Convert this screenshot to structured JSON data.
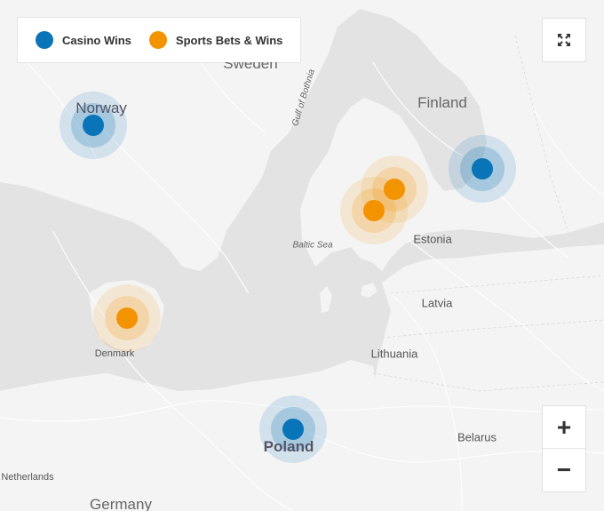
{
  "legend": {
    "items": [
      {
        "label": "Casino Wins",
        "color": "#0a74b8"
      },
      {
        "label": "Sports Bets & Wins",
        "color": "#f39300"
      }
    ]
  },
  "labels": {
    "sweden": "Sweden",
    "finland": "Finland",
    "norway": "Norway",
    "gulf_of_bothnia": "Gulf of Bothnia",
    "baltic_sea": "Baltic Sea",
    "estonia": "Estonia",
    "latvia": "Latvia",
    "lithuania": "Lithuania",
    "denmark": "Denmark",
    "poland": "Poland",
    "belarus": "Belarus",
    "netherlands": "Netherlands",
    "germany": "Germany"
  },
  "markers": [
    {
      "category": "Casino Wins",
      "place": "Norway"
    },
    {
      "category": "Casino Wins",
      "place": "Finland"
    },
    {
      "category": "Casino Wins",
      "place": "Poland"
    },
    {
      "category": "Sports Bets & Wins",
      "place": "Estonia"
    },
    {
      "category": "Sports Bets & Wins",
      "place": "Estonia"
    },
    {
      "category": "Sports Bets & Wins",
      "place": "Denmark"
    }
  ],
  "controls": {
    "fullscreen_icon": "expand-arrows-icon",
    "zoom_in": "+",
    "zoom_out": "−"
  },
  "colors": {
    "land": "#f3f3f3",
    "water": "#e2e2e2",
    "casino": "#0a74b8",
    "sports": "#f39300"
  }
}
